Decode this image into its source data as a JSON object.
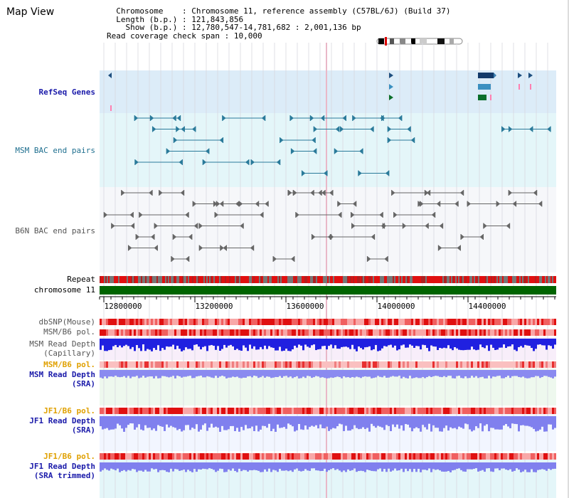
{
  "view_title": "Map View",
  "info": {
    "chromosome_key": "Chromosome",
    "chromosome_val": "Chromosome 11, reference assembly (C57BL/6J) (Build 37)",
    "length_key": "Length (b.p.)",
    "length_val": "121,843,856",
    "show_key": "Show (b.p.)",
    "show_val": "12,780,547-14,781,682 : 2,001,136 bp",
    "coverage_key": "Read coverage check span",
    "coverage_val": "10,000"
  },
  "tracks": {
    "refseq": "RefSeq Genes",
    "msm_bac": "MSM BAC end pairs",
    "b6n_bac": "B6N BAC end pairs",
    "repeat": "Repeat",
    "chromosome": "chromosome 11",
    "dbsnp": "dbSNP(Mouse)",
    "msm_b6_pol_1": "MSM/B6 pol.",
    "msm_depth_cap": "MSM Read Depth\n(Capillary)",
    "msm_b6_pol_2": "MSM/B6 pol.",
    "msm_depth_sra": "MSM Read Depth\n(SRA)",
    "jf1_b6_pol_1": "JF1/B6 pol.",
    "jf1_depth_sra": "JF1 Read Depth\n(SRA)",
    "jf1_b6_pol_2": "JF1/B6 pol.",
    "jf1_depth_trim": "JF1 Read Depth\n(SRA trimmed)"
  },
  "axis_ticks": [
    "12800000",
    "13200000",
    "13600000",
    "14000000",
    "14400000"
  ],
  "colors": {
    "refseq_bg": "#dff0fa",
    "msm_bg": "#e6f8fa",
    "b6n_bg": "#f4f6f8",
    "chrom_green": "#006400",
    "snp_red": "#e83030",
    "depth_blue": "#2020e0",
    "depth_light": "#8888f0",
    "pol_orange": "#e0a000"
  }
}
